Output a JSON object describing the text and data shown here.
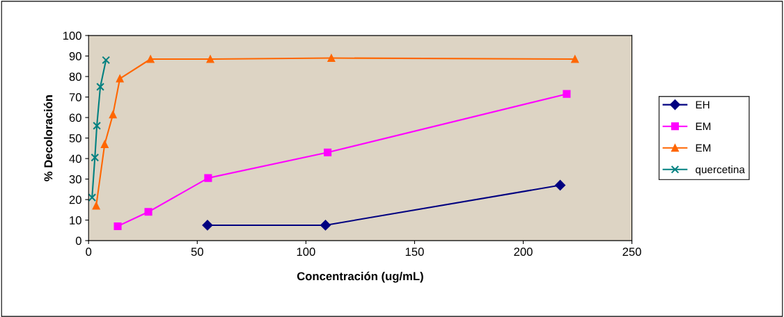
{
  "chart_data": {
    "type": "line",
    "xlabel": "Concentración (ug/mL)",
    "ylabel": "% Decoloración",
    "xlim": [
      0,
      250
    ],
    "xticks": [
      0,
      50,
      100,
      150,
      200,
      250
    ],
    "ylim": [
      0,
      100
    ],
    "yticks": [
      0,
      10,
      20,
      30,
      40,
      50,
      60,
      70,
      80,
      90,
      100
    ],
    "grid": false,
    "legend": "right",
    "line_style": "solid",
    "series": [
      {
        "name": "EH",
        "color": "#000080",
        "marker": "diamond",
        "x": [
          54.7,
          109,
          217
        ],
        "values": [
          7.5,
          7.5,
          27
        ]
      },
      {
        "name": "EM",
        "color": "#ff00ff",
        "marker": "square",
        "x": [
          13.4,
          27.5,
          55,
          110,
          220
        ],
        "values": [
          7,
          14,
          30.5,
          43,
          71.5
        ]
      },
      {
        "name": "EM",
        "color": "#ff6600",
        "marker": "triangle",
        "x": [
          3.5,
          7.4,
          11.2,
          14.4,
          28.5,
          56,
          111.7,
          223.8
        ],
        "values": [
          17,
          47,
          61.5,
          79,
          88.5,
          88.5,
          89,
          88.5
        ]
      },
      {
        "name": "quercetina",
        "color": "#008080",
        "marker": "cross",
        "x": [
          1.6,
          2.9,
          3.8,
          5.4,
          8
        ],
        "values": [
          21,
          40.5,
          56,
          75,
          88
        ]
      }
    ]
  }
}
